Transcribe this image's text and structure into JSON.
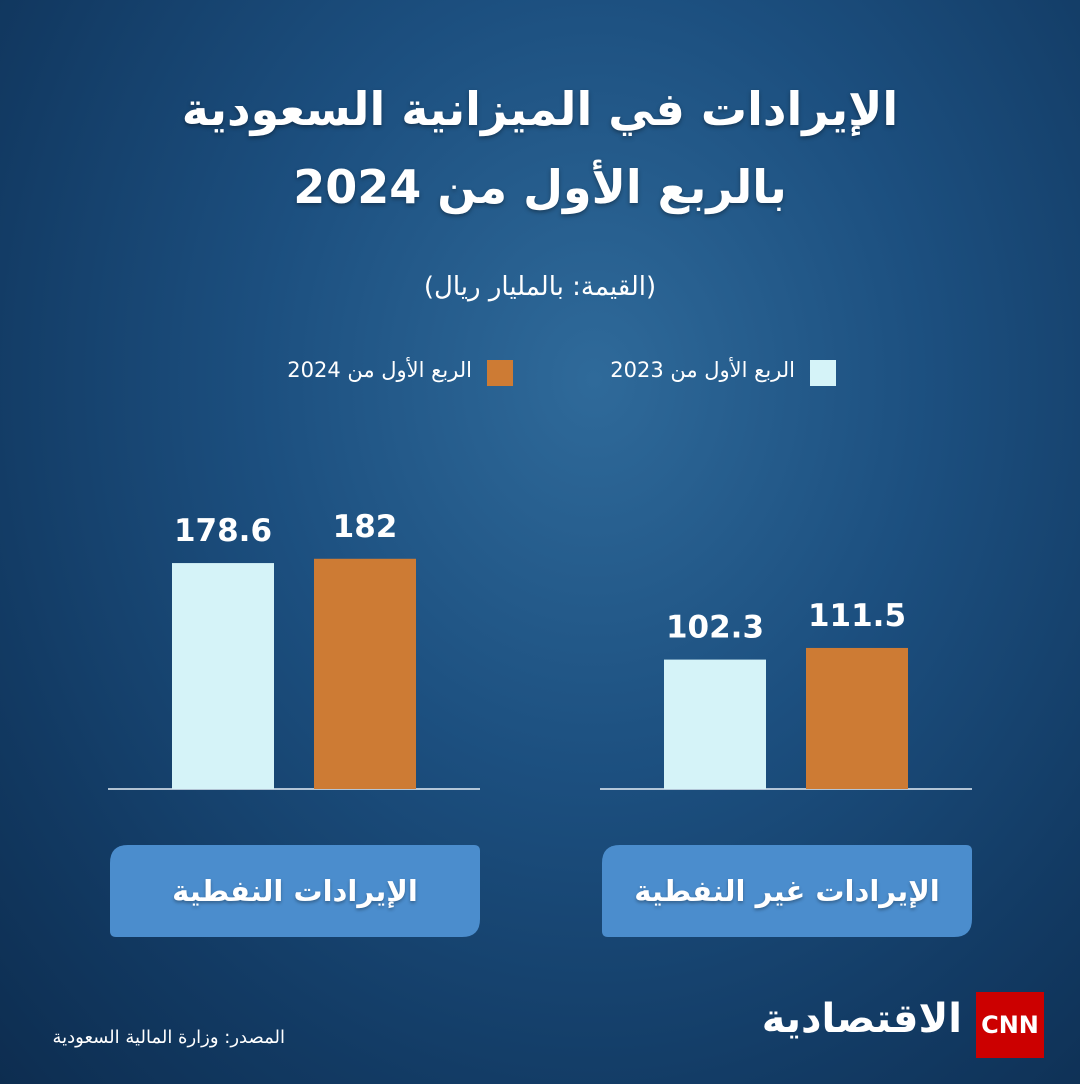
{
  "chart_data": {
    "type": "bar",
    "title": "الإيرادات في الميزانية السعودية بالربع الأول من 2024",
    "subtitle": "(القيمة: بالمليار ريال)",
    "categories": [
      "الإيرادات النفطية",
      "الإيرادات غير النفطية"
    ],
    "series": [
      {
        "name": "الربع الأول من 2023",
        "color": "#d5f3f8",
        "values": [
          178.6,
          102.3
        ]
      },
      {
        "name": "الربع الأول من 2024",
        "color": "#cd7b34",
        "values": [
          182,
          111.5
        ]
      }
    ],
    "source": "المصدر: وزارة المالية السعودية",
    "logo": {
      "brand": "CNN",
      "name": "الاقتصادية"
    }
  }
}
